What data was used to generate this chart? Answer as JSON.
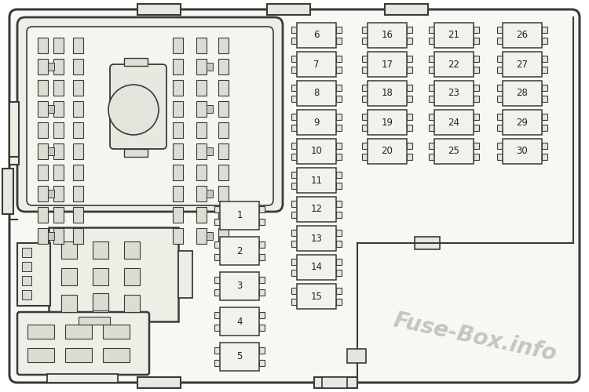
{
  "bg_color": "#ffffff",
  "outline_color": "#3a3a3a",
  "fuse_fill": "#f5f5f0",
  "relay_fill": "#eeede6",
  "inner_fill": "#f5f5f0",
  "slot_fill": "#dcdcd2",
  "text_color": "#222222",
  "watermark_color": "#c5c5c5",
  "watermark_text": "Fuse-Box.info",
  "fig_w": 7.5,
  "fig_h": 5.0,
  "dpi": 100
}
